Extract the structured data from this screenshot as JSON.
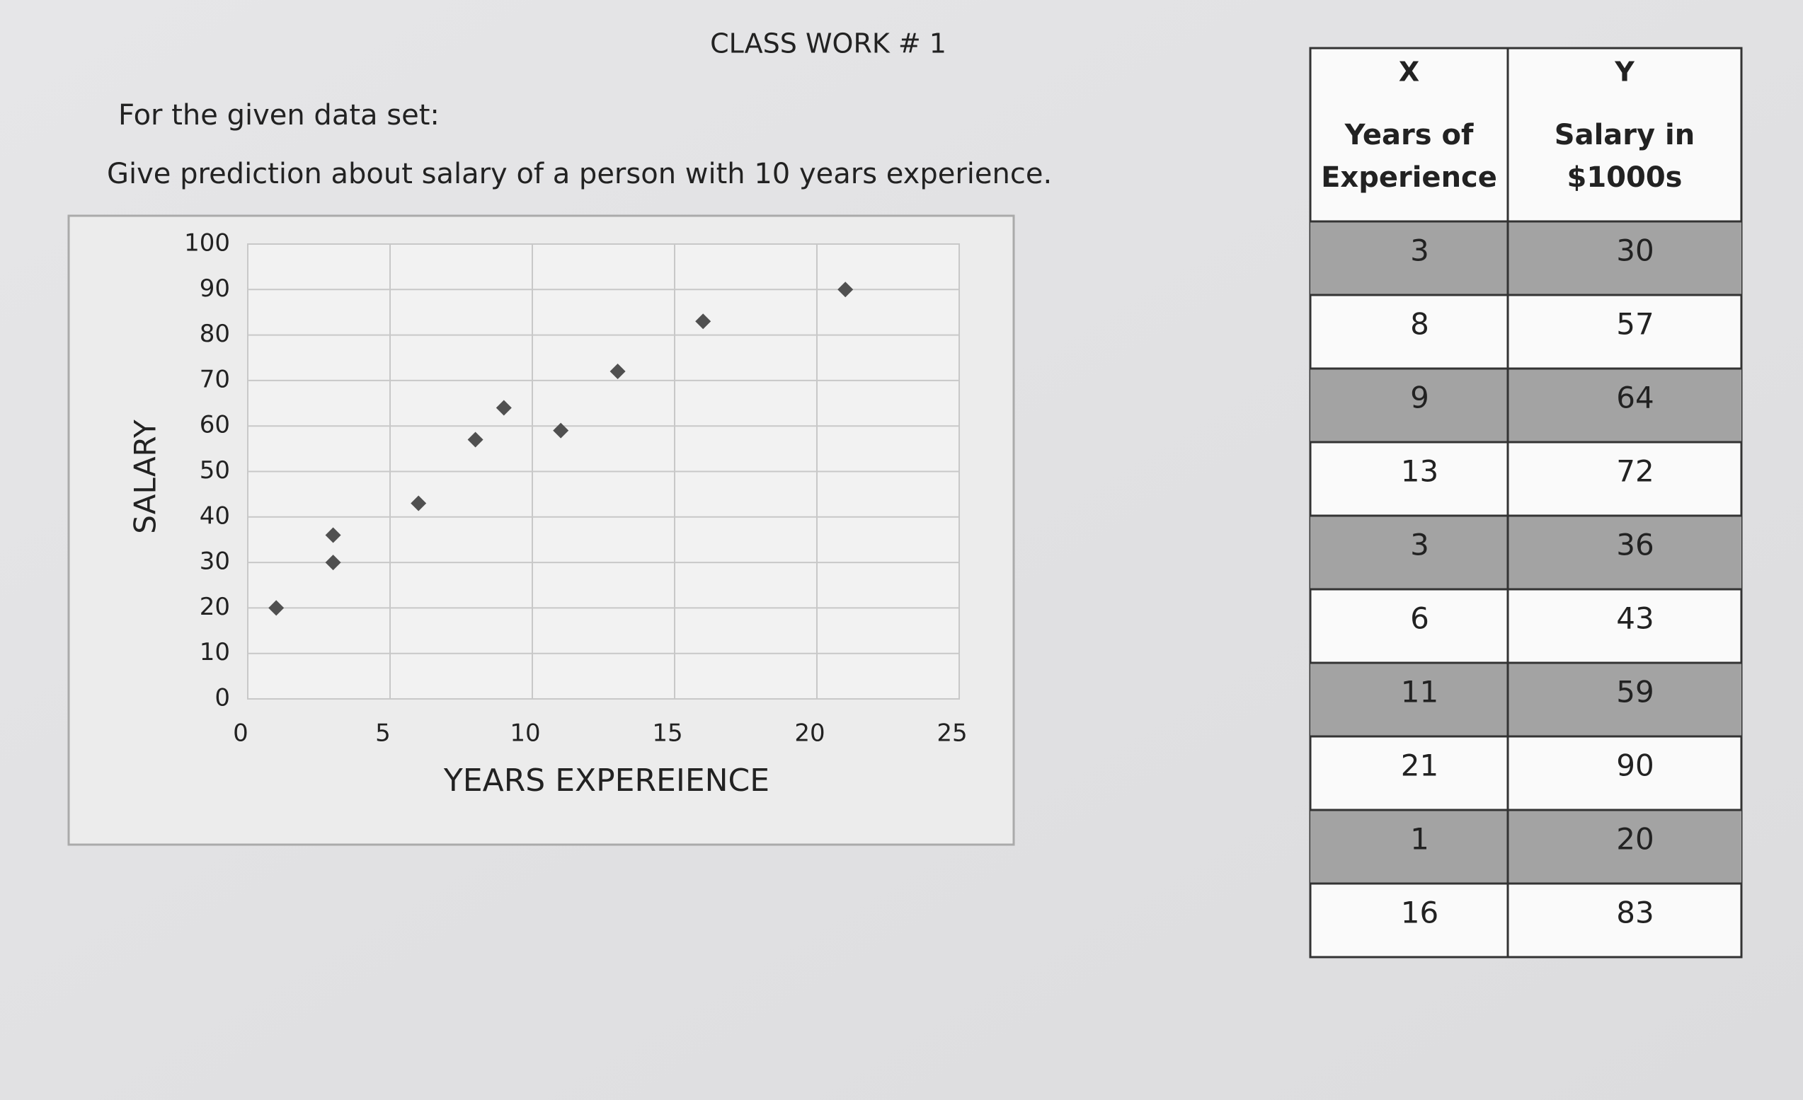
{
  "title": "CLASS WORK # 1",
  "intro": "For the given data set:",
  "question": "Give prediction about salary of a person with 10 years experience.",
  "chart_data": {
    "type": "scatter",
    "y_label": "SALARY",
    "x_label": "YEARS EXPEREIENCE",
    "x": [
      3,
      8,
      9,
      13,
      3,
      6,
      11,
      21,
      1,
      16
    ],
    "values": [
      30,
      57,
      64,
      72,
      36,
      43,
      59,
      90,
      20,
      83
    ],
    "color": "#505050",
    "xlim": [
      0,
      25
    ],
    "xticks": [
      0,
      5,
      10,
      15,
      20,
      25
    ],
    "ylim": [
      0,
      100
    ],
    "yticks": [
      0,
      10,
      20,
      30,
      40,
      50,
      60,
      70,
      80,
      90,
      100
    ],
    "grid": true
  },
  "table": {
    "header": [
      {
        "letter": "X",
        "lines": [
          "Years of",
          "Experience"
        ]
      },
      {
        "letter": "Y",
        "lines": [
          "Salary in",
          "$1000s"
        ]
      }
    ],
    "rows": [
      [
        3,
        30
      ],
      [
        8,
        57
      ],
      [
        9,
        64
      ],
      [
        13,
        72
      ],
      [
        3,
        36
      ],
      [
        6,
        43
      ],
      [
        11,
        59
      ],
      [
        21,
        90
      ],
      [
        1,
        20
      ],
      [
        16,
        83
      ]
    ]
  }
}
